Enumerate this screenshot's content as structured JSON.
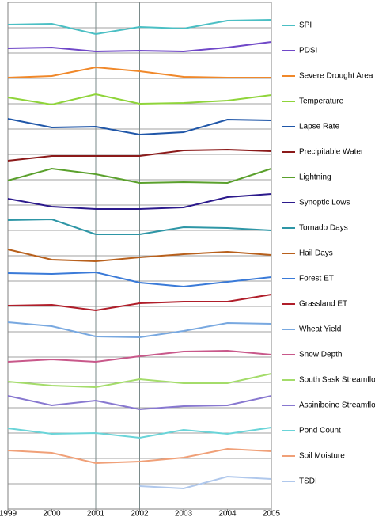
{
  "chart_data": {
    "type": "line",
    "x": [
      1999,
      2000,
      2001,
      2002,
      2003,
      2004,
      2005
    ],
    "xlim": [
      1999,
      2005
    ],
    "xticks": [
      1999,
      2000,
      2001,
      2002,
      2003,
      2004,
      2005
    ],
    "vertical_grid": [
      2001,
      2002
    ],
    "ylim": [
      -8,
      8
    ],
    "series": [
      {
        "name": "SPI",
        "color": "#4bbfc4",
        "values": [
          0.5,
          1,
          -5.5,
          -1,
          -2,
          3,
          3.5
        ]
      },
      {
        "name": "PDSI",
        "color": "#7048c8",
        "values": [
          1.5,
          2,
          -0.5,
          0,
          -0.5,
          2,
          5.5
        ]
      },
      {
        "name": "Severe Drought Area",
        "color": "#f0882a",
        "values": [
          -1,
          0,
          5.5,
          3,
          -0.5,
          -1,
          -1
        ]
      },
      {
        "name": "Temperature",
        "color": "#8fd43a",
        "values": [
          2.5,
          -2,
          4.5,
          -1.5,
          -1,
          0.5,
          4
        ]
      },
      {
        "name": "Lapse Rate",
        "color": "#1f56a8",
        "values": [
          5,
          -0.5,
          0,
          -5,
          -3.5,
          4.5,
          4
        ]
      },
      {
        "name": "Precipitable Water",
        "color": "#8b1a1a",
        "values": [
          -5.5,
          -2.5,
          -2.5,
          -2.5,
          1,
          1.5,
          0.5
        ]
      },
      {
        "name": "Lightning",
        "color": "#5aa02c",
        "values": [
          -2,
          5.5,
          2,
          -3.5,
          -3,
          -3.5,
          5.5
        ]
      },
      {
        "name": "Synoptic Lows",
        "color": "#2c1a8c",
        "values": [
          2.5,
          -2.5,
          -4,
          -4,
          -3,
          3.5,
          5.5
        ]
      },
      {
        "name": "Tornado Days",
        "color": "#2e96a6",
        "values": [
          5,
          5.5,
          -4,
          -4,
          0.5,
          0,
          -1.5
        ]
      },
      {
        "name": "Hail Days",
        "color": "#b8601c",
        "values": [
          2.5,
          -4,
          -5,
          -2.5,
          -0.5,
          1,
          -1
        ]
      },
      {
        "name": "Forest ET",
        "color": "#3a7ad8",
        "values": [
          3.5,
          3,
          4,
          -2.5,
          -5,
          -2,
          1
        ]
      },
      {
        "name": "Grassland ET",
        "color": "#b01e2a",
        "values": [
          -1,
          -0.5,
          -4,
          0.5,
          1.5,
          1.5,
          6
        ]
      },
      {
        "name": "Wheat Yield",
        "color": "#78a8e0",
        "values": [
          4.5,
          2,
          -4.5,
          -5,
          -1,
          4,
          3.5
        ]
      },
      {
        "name": "Snow Depth",
        "color": "#c8588a",
        "values": [
          -4.5,
          -3,
          -4.5,
          -1,
          2,
          2.5,
          0
        ]
      },
      {
        "name": "South Sask Streamflow",
        "color": "#a4dc6a",
        "values": [
          -1,
          -3.5,
          -4.5,
          0.5,
          -2,
          -2,
          4
        ]
      },
      {
        "name": "Assiniboine Streamflow",
        "color": "#8878d0",
        "values": [
          6,
          0,
          3,
          -2.5,
          -0.5,
          0,
          6
        ]
      },
      {
        "name": "Pond Count",
        "color": "#6ad4d8",
        "values": [
          1.5,
          -2,
          -1.5,
          -4.5,
          0.5,
          -2,
          2
        ]
      },
      {
        "name": "Soil Moisture",
        "color": "#f0a078",
        "values": [
          3.5,
          2,
          -4.5,
          -3.5,
          -1,
          4.5,
          3
        ]
      },
      {
        "name": "TSDI",
        "color": "#b0c8ec",
        "values": [
          null,
          null,
          null,
          -3,
          -4.5,
          3,
          1.5
        ]
      }
    ]
  }
}
